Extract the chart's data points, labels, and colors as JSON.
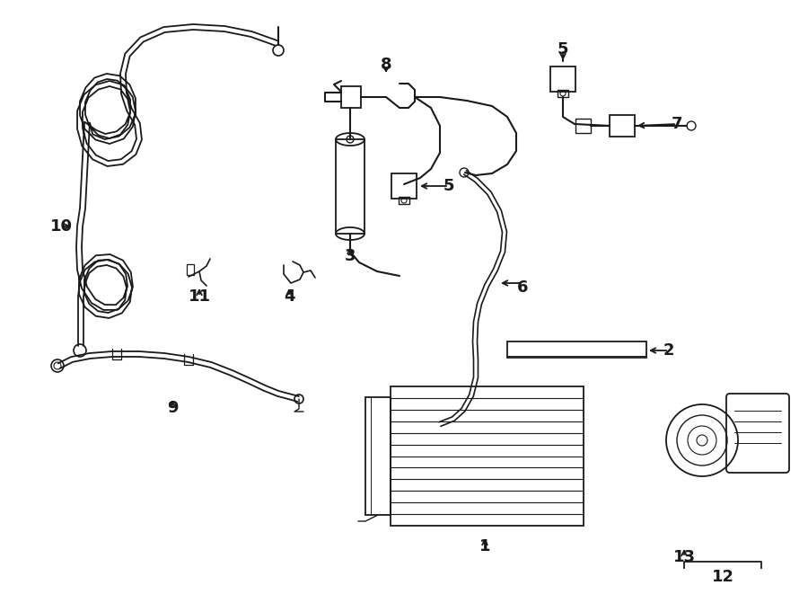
{
  "background_color": "#ffffff",
  "line_color": "#1a1a1a",
  "lw_main": 1.5,
  "lw_thin": 1.0,
  "lw_double": 2.2,
  "label_fontsize": 13
}
